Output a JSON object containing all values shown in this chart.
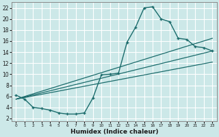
{
  "xlabel": "Humidex (Indice chaleur)",
  "bg_color": "#cce8e8",
  "grid_color": "#ffffff",
  "line_color": "#1a6b6b",
  "xlim": [
    -0.5,
    23.5
  ],
  "ylim": [
    1.5,
    23
  ],
  "xticks": [
    0,
    1,
    2,
    3,
    4,
    5,
    6,
    7,
    8,
    9,
    10,
    11,
    12,
    13,
    14,
    15,
    16,
    17,
    18,
    19,
    20,
    21,
    22,
    23
  ],
  "yticks": [
    2,
    4,
    6,
    8,
    10,
    12,
    14,
    16,
    18,
    20,
    22
  ],
  "curve1_x": [
    0,
    1,
    2,
    3,
    4,
    5,
    6,
    7,
    8,
    9,
    10,
    11,
    12,
    13,
    14,
    15,
    16,
    17,
    18,
    19,
    20,
    21,
    22,
    23
  ],
  "curve1_y": [
    6.2,
    5.5,
    4.0,
    3.8,
    3.5,
    3.0,
    2.8,
    2.8,
    3.0,
    5.7,
    9.9,
    10.0,
    10.2,
    15.8,
    18.5,
    22.0,
    22.2,
    20.0,
    19.5,
    16.5,
    16.3,
    15.0,
    14.8,
    14.2
  ],
  "line1_x": [
    0,
    23
  ],
  "line1_y": [
    5.5,
    16.5
  ],
  "line2_x": [
    0,
    23
  ],
  "line2_y": [
    5.5,
    14.2
  ],
  "line3_x": [
    0,
    23
  ],
  "line3_y": [
    5.5,
    12.2
  ]
}
